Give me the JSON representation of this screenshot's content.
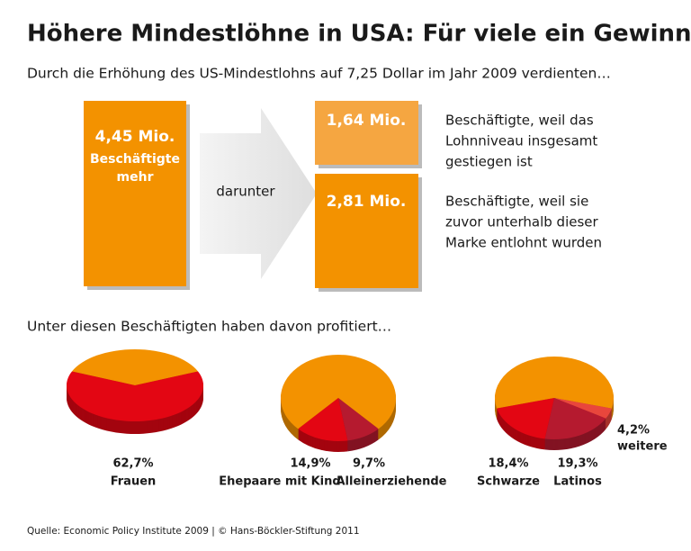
{
  "header": {
    "title": "Höhere Mindestlöhne in USA: Für viele ein Gewinn",
    "subtitle": "Durch die Erhöhung des US-Mindestlohns auf 7,25 Dollar im Jahr 2009 verdienten…"
  },
  "boxes": {
    "total": "4,45 Mio.",
    "total_text": [
      "Beschäftigte",
      "mehr"
    ],
    "arrow": "darunter",
    "upper": "1,64 Mio.",
    "upper_text": [
      "Beschäftigte, weil das",
      "Lohnniveau insgesamt",
      "gestiegen ist"
    ],
    "lower": "2,81 Mio.",
    "lower_text": [
      "Beschäftigte, weil sie",
      "zuvor unterhalb dieser",
      "Marke entlohnt wurden"
    ]
  },
  "section": "Unter diesen Beschäftigten haben davon profitiert…",
  "chart_data": [
    {
      "type": "pie",
      "categories": [
        "Frauen"
      ],
      "values": [
        62.7
      ],
      "value_labels": [
        "62,7%"
      ],
      "colors": [
        "#e30613"
      ],
      "rest_color": "#f39200"
    },
    {
      "type": "pie",
      "categories": [
        "Alleinerziehende",
        "Ehepaare mit Kind"
      ],
      "values": [
        9.7,
        14.9
      ],
      "value_labels": [
        "9,7%",
        "14,9%"
      ],
      "colors": [
        "#b51a2f",
        "#e30613"
      ],
      "rest_color": "#f39200"
    },
    {
      "type": "pie",
      "categories": [
        "weitere",
        "Latinos",
        "Schwarze"
      ],
      "values": [
        4.2,
        19.3,
        18.4
      ],
      "value_labels": [
        "4,2%",
        "19,3%",
        "18,4%"
      ],
      "colors": [
        "#e9463c",
        "#b51a2f",
        "#e30613"
      ],
      "rest_color": "#f39200"
    }
  ],
  "footer": "Quelle: Economic Policy Institute 2009 | © Hans-Böckler-Stiftung 2011"
}
